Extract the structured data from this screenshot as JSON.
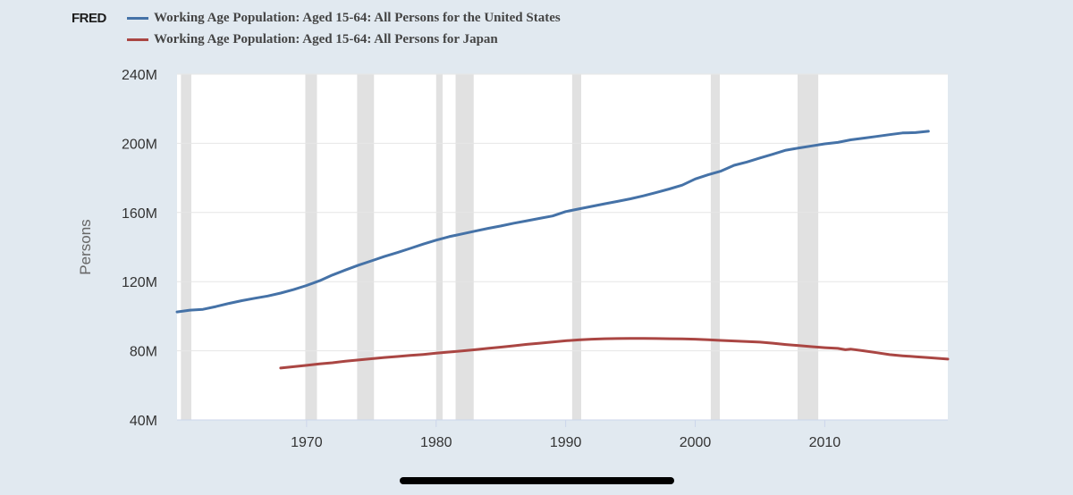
{
  "logo": "FRED",
  "colors": {
    "background": "#e1e9f0",
    "plot_background": "#ffffff",
    "gridline": "#e6e6e6",
    "recession": "#e1e1e1",
    "us_line": "#4572a7",
    "japan_line": "#aa4643",
    "axis_text": "#333333"
  },
  "chart_data": {
    "type": "line",
    "title": "",
    "xlabel": "",
    "ylabel": "Persons",
    "xlim": [
      1960,
      2019.5
    ],
    "ylim": [
      40,
      240
    ],
    "yunit": "M",
    "yticks": [
      40,
      80,
      120,
      160,
      200,
      240
    ],
    "ytick_labels": [
      "40M",
      "80M",
      "120M",
      "160M",
      "200M",
      "240M"
    ],
    "xticks": [
      1970,
      1980,
      1990,
      2000,
      2010
    ],
    "xtick_labels": [
      "1970",
      "1980",
      "1990",
      "2000",
      "2010"
    ],
    "grid": true,
    "legend_position": "top-left",
    "recessions": [
      [
        1960.3,
        1961.1
      ],
      [
        1969.9,
        1970.8
      ],
      [
        1973.9,
        1975.2
      ],
      [
        1980.0,
        1980.5
      ],
      [
        1981.5,
        1982.9
      ],
      [
        1990.5,
        1991.2
      ],
      [
        2001.2,
        2001.9
      ],
      [
        2007.9,
        2009.5
      ]
    ],
    "series": [
      {
        "name": "Working Age Population: Aged 15-64: All Persons for the United States",
        "color": "#4572a7",
        "points": [
          [
            1960,
            102.5
          ],
          [
            1961,
            103.5
          ],
          [
            1962,
            104.0
          ],
          [
            1963,
            105.6
          ],
          [
            1964,
            107.4
          ],
          [
            1965,
            109.0
          ],
          [
            1966,
            110.4
          ],
          [
            1967,
            111.7
          ],
          [
            1968,
            113.4
          ],
          [
            1969,
            115.4
          ],
          [
            1970,
            117.8
          ],
          [
            1971,
            120.5
          ],
          [
            1972,
            123.8
          ],
          [
            1973,
            126.7
          ],
          [
            1974,
            129.5
          ],
          [
            1975,
            132.0
          ],
          [
            1976,
            134.5
          ],
          [
            1977,
            136.8
          ],
          [
            1978,
            139.2
          ],
          [
            1979,
            141.7
          ],
          [
            1980,
            144.0
          ],
          [
            1981,
            146.0
          ],
          [
            1982,
            147.6
          ],
          [
            1983,
            149.2
          ],
          [
            1984,
            150.8
          ],
          [
            1985,
            152.2
          ],
          [
            1986,
            153.8
          ],
          [
            1987,
            155.2
          ],
          [
            1988,
            156.6
          ],
          [
            1989,
            158.0
          ],
          [
            1990,
            160.5
          ],
          [
            1991,
            162.0
          ],
          [
            1992,
            163.5
          ],
          [
            1993,
            165.0
          ],
          [
            1994,
            166.4
          ],
          [
            1995,
            167.9
          ],
          [
            1996,
            169.6
          ],
          [
            1997,
            171.6
          ],
          [
            1998,
            173.6
          ],
          [
            1999,
            175.8
          ],
          [
            2000,
            179.4
          ],
          [
            2001,
            181.8
          ],
          [
            2002,
            184.0
          ],
          [
            2003,
            187.3
          ],
          [
            2004,
            189.2
          ],
          [
            2005,
            191.5
          ],
          [
            2006,
            193.7
          ],
          [
            2007,
            196.0
          ],
          [
            2008,
            197.3
          ],
          [
            2009,
            198.5
          ],
          [
            2010,
            199.7
          ],
          [
            2011,
            200.5
          ],
          [
            2012,
            202.0
          ],
          [
            2013,
            203.0
          ],
          [
            2014,
            204.0
          ],
          [
            2015,
            205.0
          ],
          [
            2016,
            206.0
          ],
          [
            2017,
            206.2
          ],
          [
            2018,
            207.0
          ]
        ]
      },
      {
        "name": "Working Age Population: Aged 15-64: All Persons for Japan",
        "color": "#aa4643",
        "points": [
          [
            1968,
            70.0
          ],
          [
            1969,
            70.8
          ],
          [
            1970,
            71.6
          ],
          [
            1971,
            72.4
          ],
          [
            1972,
            73.1
          ],
          [
            1973,
            74.0
          ],
          [
            1974,
            74.7
          ],
          [
            1975,
            75.4
          ],
          [
            1976,
            76.1
          ],
          [
            1977,
            76.7
          ],
          [
            1978,
            77.3
          ],
          [
            1979,
            77.9
          ],
          [
            1980,
            78.6
          ],
          [
            1981,
            79.3
          ],
          [
            1982,
            79.9
          ],
          [
            1983,
            80.6
          ],
          [
            1984,
            81.4
          ],
          [
            1985,
            82.1
          ],
          [
            1986,
            82.9
          ],
          [
            1987,
            83.7
          ],
          [
            1988,
            84.4
          ],
          [
            1989,
            85.1
          ],
          [
            1990,
            85.8
          ],
          [
            1991,
            86.3
          ],
          [
            1992,
            86.7
          ],
          [
            1993,
            87.0
          ],
          [
            1994,
            87.1
          ],
          [
            1995,
            87.2
          ],
          [
            1996,
            87.2
          ],
          [
            1997,
            87.1
          ],
          [
            1998,
            87.0
          ],
          [
            1999,
            86.9
          ],
          [
            2000,
            86.7
          ],
          [
            2001,
            86.4
          ],
          [
            2002,
            86.0
          ],
          [
            2003,
            85.7
          ],
          [
            2004,
            85.4
          ],
          [
            2005,
            85.0
          ],
          [
            2006,
            84.4
          ],
          [
            2007,
            83.6
          ],
          [
            2008,
            83.0
          ],
          [
            2009,
            82.4
          ],
          [
            2010,
            81.8
          ],
          [
            2011,
            81.4
          ],
          [
            2011.6,
            80.6
          ],
          [
            2012,
            81.0
          ],
          [
            2013,
            80.0
          ],
          [
            2014,
            78.9
          ],
          [
            2015,
            77.8
          ],
          [
            2016,
            77.1
          ],
          [
            2017,
            76.6
          ],
          [
            2018,
            76.0
          ],
          [
            2019.5,
            75.2
          ]
        ]
      }
    ]
  }
}
